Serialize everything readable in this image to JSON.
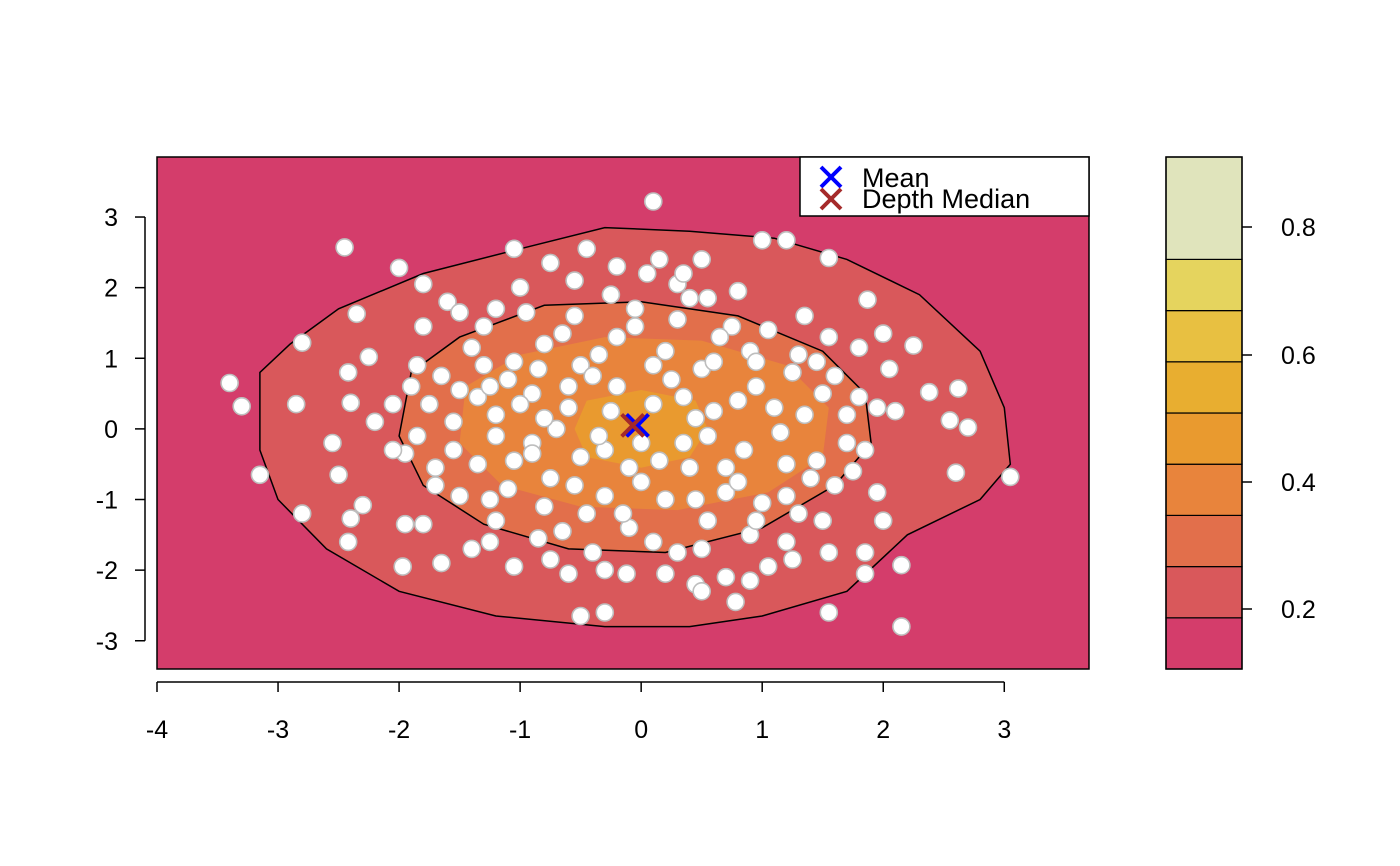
{
  "chart_data": {
    "type": "scatter",
    "title": "",
    "xlabel": "",
    "ylabel": "",
    "xlim": [
      -4,
      3.7
    ],
    "ylim": [
      -3.4,
      3.85
    ],
    "x_ticks": [
      -4,
      -3,
      -2,
      -1,
      0,
      1,
      2,
      3
    ],
    "x_tick_labels": [
      "-4",
      "-3",
      "-2",
      "-1",
      "0",
      "1",
      "2",
      "3"
    ],
    "y_ticks": [
      -3,
      -2,
      -1,
      0,
      1,
      2,
      3
    ],
    "y_tick_labels": [
      "-3",
      "-2",
      "-1",
      "0",
      "1",
      "2",
      "3"
    ],
    "grid": false,
    "background_color": "#D43D6B",
    "point_fill": "#FFFFFF",
    "point_stroke": "#BEBEBE",
    "legend": {
      "position": "top-right",
      "entries": [
        {
          "label": "Mean",
          "marker": "x",
          "color": "#0000FF",
          "x": -0.03,
          "y": 0.05
        },
        {
          "label": "Depth Median",
          "marker": "x",
          "color": "#A52A2A",
          "x": -0.07,
          "y": 0.05
        }
      ]
    },
    "depth_contours": [
      {
        "level": 0.2,
        "fill": "#D9585B",
        "points": [
          [
            -3.15,
            0.8
          ],
          [
            -2.9,
            1.2
          ],
          [
            -2.5,
            1.7
          ],
          [
            -1.8,
            2.2
          ],
          [
            -1,
            2.55
          ],
          [
            -0.3,
            2.85
          ],
          [
            0.4,
            2.8
          ],
          [
            1.1,
            2.7
          ],
          [
            1.7,
            2.4
          ],
          [
            2.3,
            1.9
          ],
          [
            2.8,
            1.1
          ],
          [
            3,
            0.3
          ],
          [
            3.05,
            -0.5
          ],
          [
            2.8,
            -1
          ],
          [
            2.2,
            -1.5
          ],
          [
            1.7,
            -2.3
          ],
          [
            1,
            -2.65
          ],
          [
            0.4,
            -2.8
          ],
          [
            -0.3,
            -2.8
          ],
          [
            -1.2,
            -2.65
          ],
          [
            -2,
            -2.3
          ],
          [
            -2.6,
            -1.7
          ],
          [
            -3,
            -1
          ],
          [
            -3.15,
            -0.3
          ]
        ]
      },
      {
        "level": 0.3,
        "fill": "#E26F4B",
        "points": [
          [
            -1.9,
            0.8
          ],
          [
            -1.5,
            1.3
          ],
          [
            -0.8,
            1.75
          ],
          [
            0,
            1.8
          ],
          [
            0.8,
            1.6
          ],
          [
            1.5,
            1.1
          ],
          [
            1.85,
            0.5
          ],
          [
            1.9,
            -0.2
          ],
          [
            1.6,
            -0.8
          ],
          [
            1,
            -1.4
          ],
          [
            0.2,
            -1.75
          ],
          [
            -0.6,
            -1.7
          ],
          [
            -1.3,
            -1.35
          ],
          [
            -1.8,
            -0.8
          ],
          [
            -2,
            -0.1
          ]
        ]
      },
      {
        "level": 0.4,
        "fill": "#E8843C",
        "points": [
          [
            -1.45,
            0.6
          ],
          [
            -1,
            1.05
          ],
          [
            -0.3,
            1.3
          ],
          [
            0.5,
            1.25
          ],
          [
            1.2,
            0.9
          ],
          [
            1.55,
            0.3
          ],
          [
            1.5,
            -0.4
          ],
          [
            1.05,
            -0.9
          ],
          [
            0.3,
            -1.15
          ],
          [
            -0.5,
            -1.1
          ],
          [
            -1.15,
            -0.8
          ],
          [
            -1.5,
            -0.2
          ]
        ]
      },
      {
        "level": 0.5,
        "fill": "#E99A2F",
        "points": [
          [
            -0.45,
            0.4
          ],
          [
            0,
            0.55
          ],
          [
            0.45,
            0.4
          ],
          [
            0.55,
            0
          ],
          [
            0.4,
            -0.4
          ],
          [
            0,
            -0.55
          ],
          [
            -0.45,
            -0.4
          ],
          [
            -0.55,
            0
          ]
        ]
      }
    ],
    "colorbar": {
      "levels": [
        0.1,
        0.2,
        0.3,
        0.4,
        0.5,
        0.6,
        0.7,
        0.8,
        0.9
      ],
      "colors": [
        "#D43D6B",
        "#D9585B",
        "#E26F4B",
        "#E8843C",
        "#E99A2F",
        "#E8AE30",
        "#E8C041",
        "#E5D45E",
        "#E0E4BC"
      ],
      "tick_values": [
        0.2,
        0.4,
        0.6,
        0.8
      ],
      "tick_labels": [
        "0.2",
        "0.4",
        "0.6",
        "0.8"
      ]
    },
    "points": [
      [
        0.1,
        3.22
      ],
      [
        -2.45,
        2.57
      ],
      [
        -1.05,
        2.55
      ],
      [
        -2.0,
        2.28
      ],
      [
        1.0,
        2.67
      ],
      [
        1.2,
        2.67
      ],
      [
        1.55,
        2.42
      ],
      [
        -1.8,
        2.05
      ],
      [
        -2.35,
        1.63
      ],
      [
        -2.8,
        1.22
      ],
      [
        1.87,
        1.83
      ],
      [
        2.25,
        1.18
      ],
      [
        -2.25,
        1.02
      ],
      [
        -2.42,
        0.8
      ],
      [
        -3.4,
        0.65
      ],
      [
        -3.3,
        0.32
      ],
      [
        -2.85,
        0.35
      ],
      [
        -2.4,
        0.37
      ],
      [
        -2.55,
        -0.2
      ],
      [
        -3.15,
        -0.65
      ],
      [
        -2.5,
        -0.65
      ],
      [
        -2.8,
        -1.2
      ],
      [
        -2.4,
        -1.27
      ],
      [
        -2.3,
        -1.08
      ],
      [
        -2.42,
        -1.6
      ],
      [
        -1.97,
        -1.95
      ],
      [
        2.62,
        0.57
      ],
      [
        2.38,
        0.52
      ],
      [
        2.55,
        0.12
      ],
      [
        2.7,
        0.02
      ],
      [
        3.05,
        -0.68
      ],
      [
        2.6,
        -0.62
      ],
      [
        2.15,
        -1.93
      ],
      [
        1.55,
        -2.6
      ],
      [
        2.15,
        -2.8
      ],
      [
        -0.5,
        -2.65
      ],
      [
        -0.3,
        -2.6
      ],
      [
        -0.6,
        -2.05
      ],
      [
        -0.12,
        -2.05
      ],
      [
        0.45,
        -2.2
      ],
      [
        0.78,
        -2.45
      ],
      [
        -1.85,
        0.9
      ],
      [
        -1.6,
        1.8
      ],
      [
        -1.3,
        1.45
      ],
      [
        -1.1,
        0.7
      ],
      [
        -0.8,
        1.2
      ],
      [
        -0.5,
        0.9
      ],
      [
        -0.2,
        1.3
      ],
      [
        0.2,
        1.1
      ],
      [
        0.5,
        0.85
      ],
      [
        0.9,
        1.1
      ],
      [
        1.25,
        0.8
      ],
      [
        1.5,
        0.5
      ],
      [
        1.7,
        0.2
      ],
      [
        1.85,
        -0.3
      ],
      [
        1.6,
        -0.8
      ],
      [
        1.3,
        -1.2
      ],
      [
        0.9,
        -1.5
      ],
      [
        0.5,
        -1.7
      ],
      [
        0.1,
        -1.6
      ],
      [
        -0.4,
        -1.75
      ],
      [
        -0.85,
        -1.55
      ],
      [
        -1.2,
        -1.3
      ],
      [
        -1.5,
        -0.95
      ],
      [
        -1.7,
        -0.55
      ],
      [
        -1.85,
        -0.1
      ],
      [
        -1.75,
        0.35
      ],
      [
        -1.5,
        0.55
      ],
      [
        -1.2,
        0.2
      ],
      [
        -0.9,
        -0.2
      ],
      [
        -0.6,
        0.3
      ],
      [
        -0.3,
        -0.3
      ],
      [
        0.1,
        0.35
      ],
      [
        0.35,
        -0.2
      ],
      [
        0.6,
        0.25
      ],
      [
        0.85,
        -0.3
      ],
      [
        1.1,
        0.3
      ],
      [
        1.2,
        -0.5
      ],
      [
        0.7,
        -0.9
      ],
      [
        0.2,
        -1.0
      ],
      [
        -0.3,
        -0.95
      ],
      [
        -0.75,
        -0.7
      ],
      [
        -1.05,
        -0.45
      ],
      [
        -1.3,
        0.9
      ],
      [
        -0.95,
        1.65
      ],
      [
        -0.55,
        2.1
      ],
      [
        -0.25,
        1.9
      ],
      [
        0.05,
        2.2
      ],
      [
        0.3,
        2.05
      ],
      [
        0.55,
        1.85
      ],
      [
        0.75,
        1.45
      ],
      [
        1.05,
        1.4
      ],
      [
        1.35,
        1.6
      ],
      [
        1.55,
        1.3
      ],
      [
        1.8,
        1.15
      ],
      [
        2.0,
        1.35
      ],
      [
        2.05,
        0.85
      ],
      [
        2.1,
        0.25
      ],
      [
        1.95,
        0.3
      ],
      [
        1.75,
        -0.6
      ],
      [
        1.95,
        -0.9
      ],
      [
        2.0,
        -1.3
      ],
      [
        1.85,
        -1.75
      ],
      [
        1.85,
        -2.05
      ],
      [
        1.5,
        -1.3
      ],
      [
        1.2,
        -1.6
      ],
      [
        1.05,
        -1.95
      ],
      [
        0.9,
        -2.15
      ],
      [
        0.7,
        -2.1
      ],
      [
        0.5,
        -2.3
      ],
      [
        0.3,
        -1.75
      ],
      [
        -0.1,
        -1.4
      ],
      [
        -0.65,
        -1.45
      ],
      [
        -1.05,
        -1.95
      ],
      [
        -1.4,
        -1.7
      ],
      [
        -1.65,
        -1.9
      ],
      [
        -1.8,
        -1.35
      ],
      [
        -1.95,
        -1.35
      ],
      [
        -1.7,
        -0.8
      ],
      [
        -1.95,
        -0.35
      ],
      [
        -2.05,
        -0.3
      ],
      [
        -2.2,
        0.1
      ],
      [
        -2.05,
        0.35
      ],
      [
        -1.9,
        0.6
      ],
      [
        -1.8,
        1.45
      ],
      [
        -1.5,
        1.65
      ],
      [
        -1.2,
        1.7
      ],
      [
        -1.0,
        2.0
      ],
      [
        -0.75,
        2.35
      ],
      [
        -0.45,
        2.55
      ],
      [
        -0.2,
        2.3
      ],
      [
        0.15,
        2.4
      ],
      [
        0.35,
        2.2
      ],
      [
        0.5,
        2.4
      ],
      [
        0.8,
        1.95
      ],
      [
        -0.9,
        0.5
      ],
      [
        -0.7,
        0.0
      ],
      [
        -0.5,
        -0.4
      ],
      [
        -0.2,
        0.6
      ],
      [
        0.0,
        -0.2
      ],
      [
        0.25,
        0.7
      ],
      [
        0.45,
        0.15
      ],
      [
        0.7,
        -0.55
      ],
      [
        0.95,
        0.6
      ],
      [
        1.15,
        -0.05
      ],
      [
        1.35,
        0.2
      ],
      [
        1.4,
        -0.7
      ],
      [
        1.0,
        -1.05
      ],
      [
        0.55,
        -1.3
      ],
      [
        0.0,
        -0.75
      ],
      [
        -0.45,
        -1.2
      ],
      [
        -0.8,
        -1.1
      ],
      [
        -1.1,
        -0.85
      ],
      [
        -1.35,
        -0.5
      ],
      [
        -1.55,
        0.1
      ],
      [
        -1.35,
        0.45
      ],
      [
        -1.05,
        0.95
      ],
      [
        -0.65,
        1.35
      ],
      [
        -0.35,
        1.05
      ],
      [
        -0.05,
        1.45
      ],
      [
        0.3,
        1.55
      ],
      [
        0.65,
        1.3
      ],
      [
        0.95,
        0.95
      ],
      [
        1.3,
        1.05
      ],
      [
        1.6,
        0.75
      ],
      [
        1.7,
        -0.2
      ],
      [
        1.45,
        -0.45
      ],
      [
        1.2,
        -0.95
      ],
      [
        0.8,
        -0.75
      ],
      [
        0.4,
        -0.55
      ],
      [
        -0.1,
        -0.55
      ],
      [
        -0.55,
        -0.8
      ],
      [
        -0.9,
        -0.35
      ],
      [
        -1.2,
        -0.1
      ],
      [
        -1.0,
        0.35
      ],
      [
        -0.6,
        0.6
      ],
      [
        -0.25,
        0.25
      ],
      [
        0.15,
        -0.45
      ],
      [
        0.55,
        -0.1
      ],
      [
        0.8,
        0.4
      ],
      [
        0.35,
        0.45
      ],
      [
        -0.35,
        -0.1
      ],
      [
        -0.8,
        0.15
      ],
      [
        0.1,
        0.9
      ],
      [
        0.6,
        0.95
      ],
      [
        -0.4,
        0.75
      ],
      [
        -1.4,
        1.15
      ],
      [
        -1.65,
        0.75
      ],
      [
        1.55,
        -1.75
      ],
      [
        1.25,
        -1.85
      ],
      [
        0.2,
        -2.05
      ],
      [
        -0.3,
        -2.0
      ],
      [
        -0.75,
        -1.85
      ],
      [
        -1.25,
        -1.6
      ],
      [
        -0.15,
        -1.2
      ],
      [
        0.45,
        -1.0
      ],
      [
        0.95,
        -1.3
      ],
      [
        -0.55,
        1.6
      ],
      [
        -0.85,
        0.85
      ],
      [
        -1.25,
        0.6
      ],
      [
        1.45,
        0.95
      ],
      [
        0.4,
        1.85
      ],
      [
        -0.05,
        1.7
      ],
      [
        -1.55,
        -0.3
      ],
      [
        -1.25,
        -1.0
      ],
      [
        1.8,
        0.45
      ]
    ]
  }
}
